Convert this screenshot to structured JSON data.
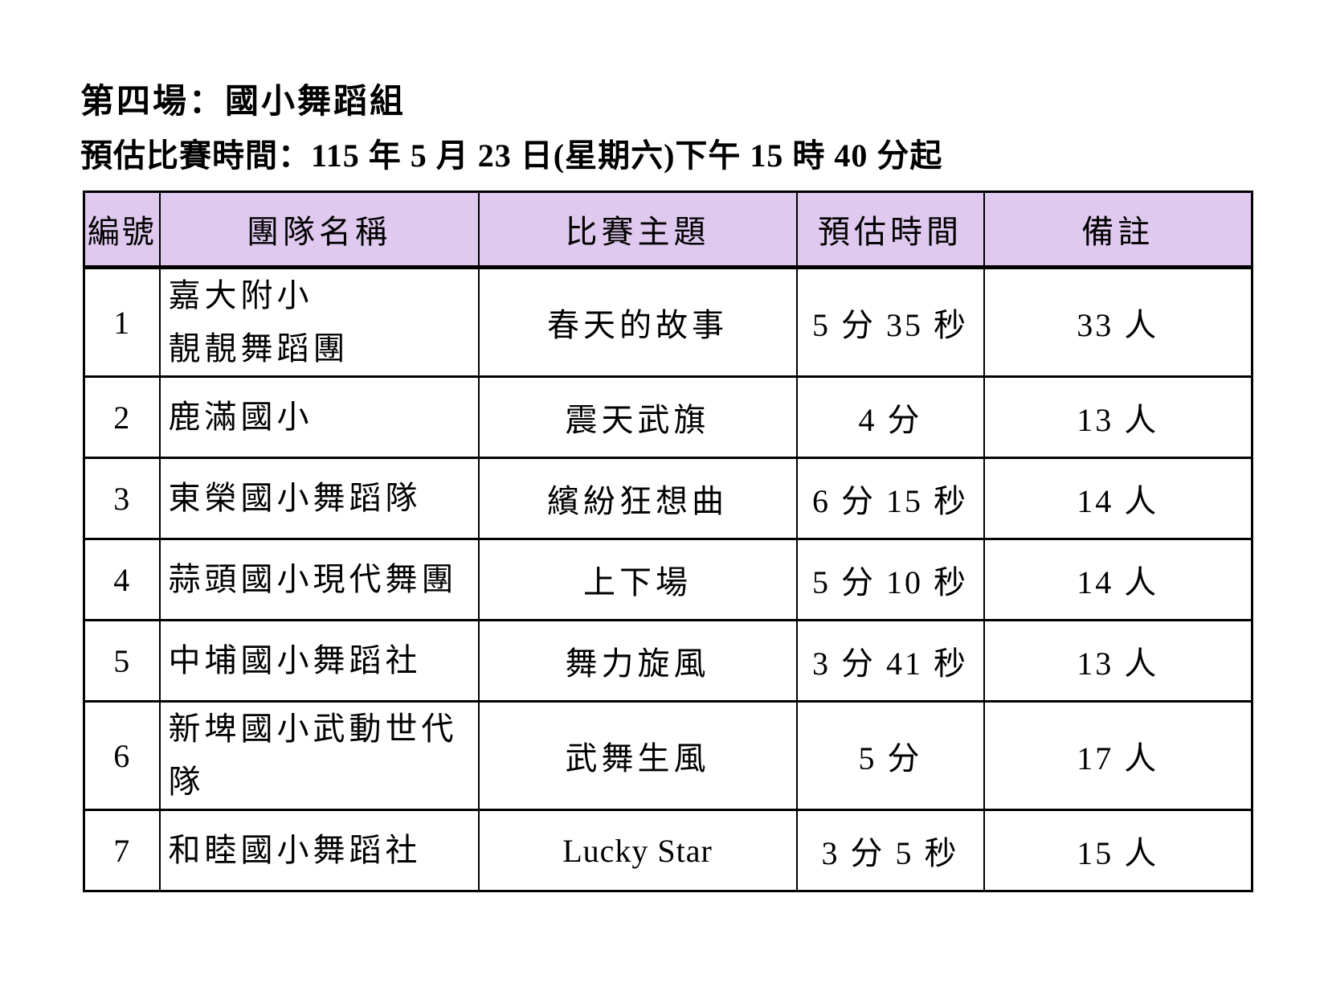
{
  "page": {
    "title": "第四場：國小舞蹈組",
    "subtitle": "預估比賽時間：115 年 5 月 23 日(星期六)下午 15 時 40 分起"
  },
  "table": {
    "header_bg": "#DFC9EE",
    "border_color": "#000000",
    "columns": [
      "編號",
      "團隊名稱",
      "比賽主題",
      "預估時間",
      "備註"
    ],
    "rows": [
      {
        "no": "1",
        "team": "嘉大附小\n靚靚舞蹈團",
        "theme": "春天的故事",
        "time": "5 分 35 秒",
        "note": "33 人"
      },
      {
        "no": "2",
        "team": "鹿滿國小",
        "theme": "震天武旗",
        "time": "4 分",
        "note": "13 人"
      },
      {
        "no": "3",
        "team": "東榮國小舞蹈隊",
        "theme": "繽紛狂想曲",
        "time": "6 分 15 秒",
        "note": "14 人"
      },
      {
        "no": "4",
        "team": "蒜頭國小現代舞團",
        "theme": "上下場",
        "time": "5 分 10 秒",
        "note": "14 人"
      },
      {
        "no": "5",
        "team": "中埔國小舞蹈社",
        "theme": "舞力旋風",
        "time": "3 分 41 秒",
        "note": "13 人"
      },
      {
        "no": "6",
        "team": "新埤國小武動世代隊",
        "theme": "武舞生風",
        "time": "5 分",
        "note": "17 人"
      },
      {
        "no": "7",
        "team": "和睦國小舞蹈社",
        "theme": "Lucky Star",
        "time": "3 分 5 秒",
        "note": "15 人"
      }
    ]
  }
}
